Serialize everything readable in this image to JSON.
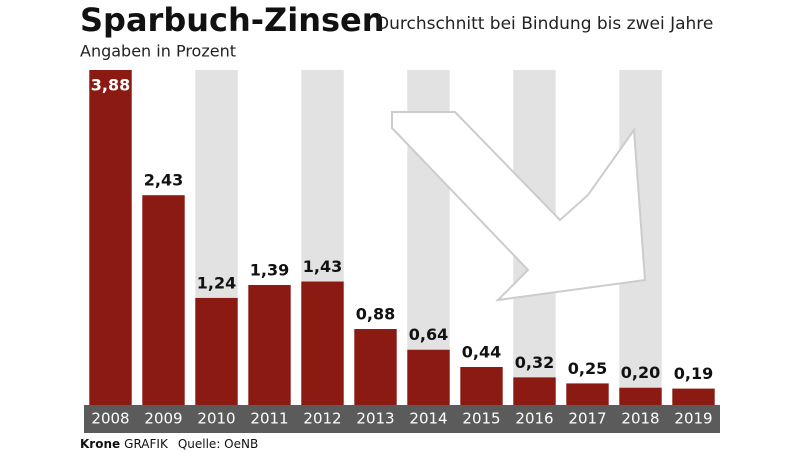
{
  "chart_data": {
    "type": "bar",
    "title": "Sparbuch-Zinsen",
    "subtitle": "Durchschnitt bei Bindung bis zwei Jahre",
    "unit_note": "Angaben in Prozent",
    "categories": [
      "2008",
      "2009",
      "2010",
      "2011",
      "2012",
      "2013",
      "2014",
      "2015",
      "2016",
      "2017",
      "2018",
      "2019"
    ],
    "values": [
      3.88,
      2.43,
      1.24,
      1.39,
      1.43,
      0.88,
      0.64,
      0.44,
      0.32,
      0.25,
      0.2,
      0.19
    ],
    "value_labels": [
      "3,88",
      "2,43",
      "1,24",
      "1,39",
      "1,43",
      "0,88",
      "0,64",
      "0,44",
      "0,32",
      "0,25",
      "0,20",
      "0,19"
    ],
    "color": "#8b1a12",
    "footer": {
      "brand": "Krone",
      "label": "GRAFIK",
      "source": "Quelle: OeNB"
    }
  }
}
